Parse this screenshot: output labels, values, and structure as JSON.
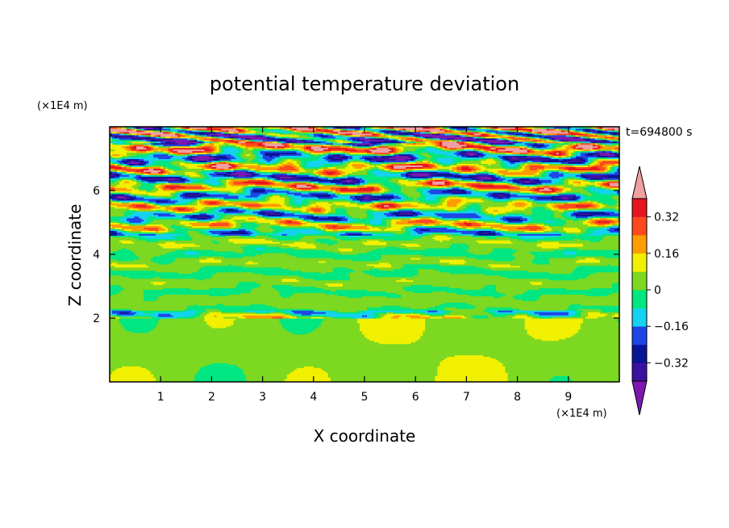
{
  "chart_data": {
    "type": "heatmap",
    "title": "potential temperature deviation",
    "xlabel": "X coordinate",
    "ylabel": "Z coordinate",
    "x_unit": "(×1E4 m)",
    "y_unit": "(×1E4 m)",
    "time_label": "t=694800 s",
    "xlim": [
      0,
      10
    ],
    "ylim": [
      0,
      8
    ],
    "x_ticks": [
      1,
      2,
      3,
      4,
      5,
      6,
      7,
      8,
      9
    ],
    "x_tick_labels": [
      "1",
      "2",
      "3",
      "4",
      "5",
      "6",
      "7",
      "8",
      "9"
    ],
    "y_ticks": [
      2,
      4,
      6
    ],
    "y_tick_labels": [
      "2",
      "4",
      "6"
    ],
    "colorbar": {
      "levels": [
        -0.4,
        -0.32,
        -0.24,
        -0.16,
        -0.08,
        0,
        0.08,
        0.16,
        0.24,
        0.32,
        0.4
      ],
      "tick_values": [
        0.32,
        0.16,
        0,
        -0.16,
        -0.32
      ],
      "tick_labels": [
        "0.32",
        "0.16",
        "0",
        "−0.16",
        "−0.32"
      ],
      "colors": [
        "#7b18b0",
        "#3a12a0",
        "#0a1496",
        "#1e46e6",
        "#14d2f0",
        "#00e680",
        "#7cd820",
        "#f0f000",
        "#ff9c00",
        "#ff4a1e",
        "#e6161e",
        "#f0a0a0"
      ],
      "extend": "both"
    }
  }
}
